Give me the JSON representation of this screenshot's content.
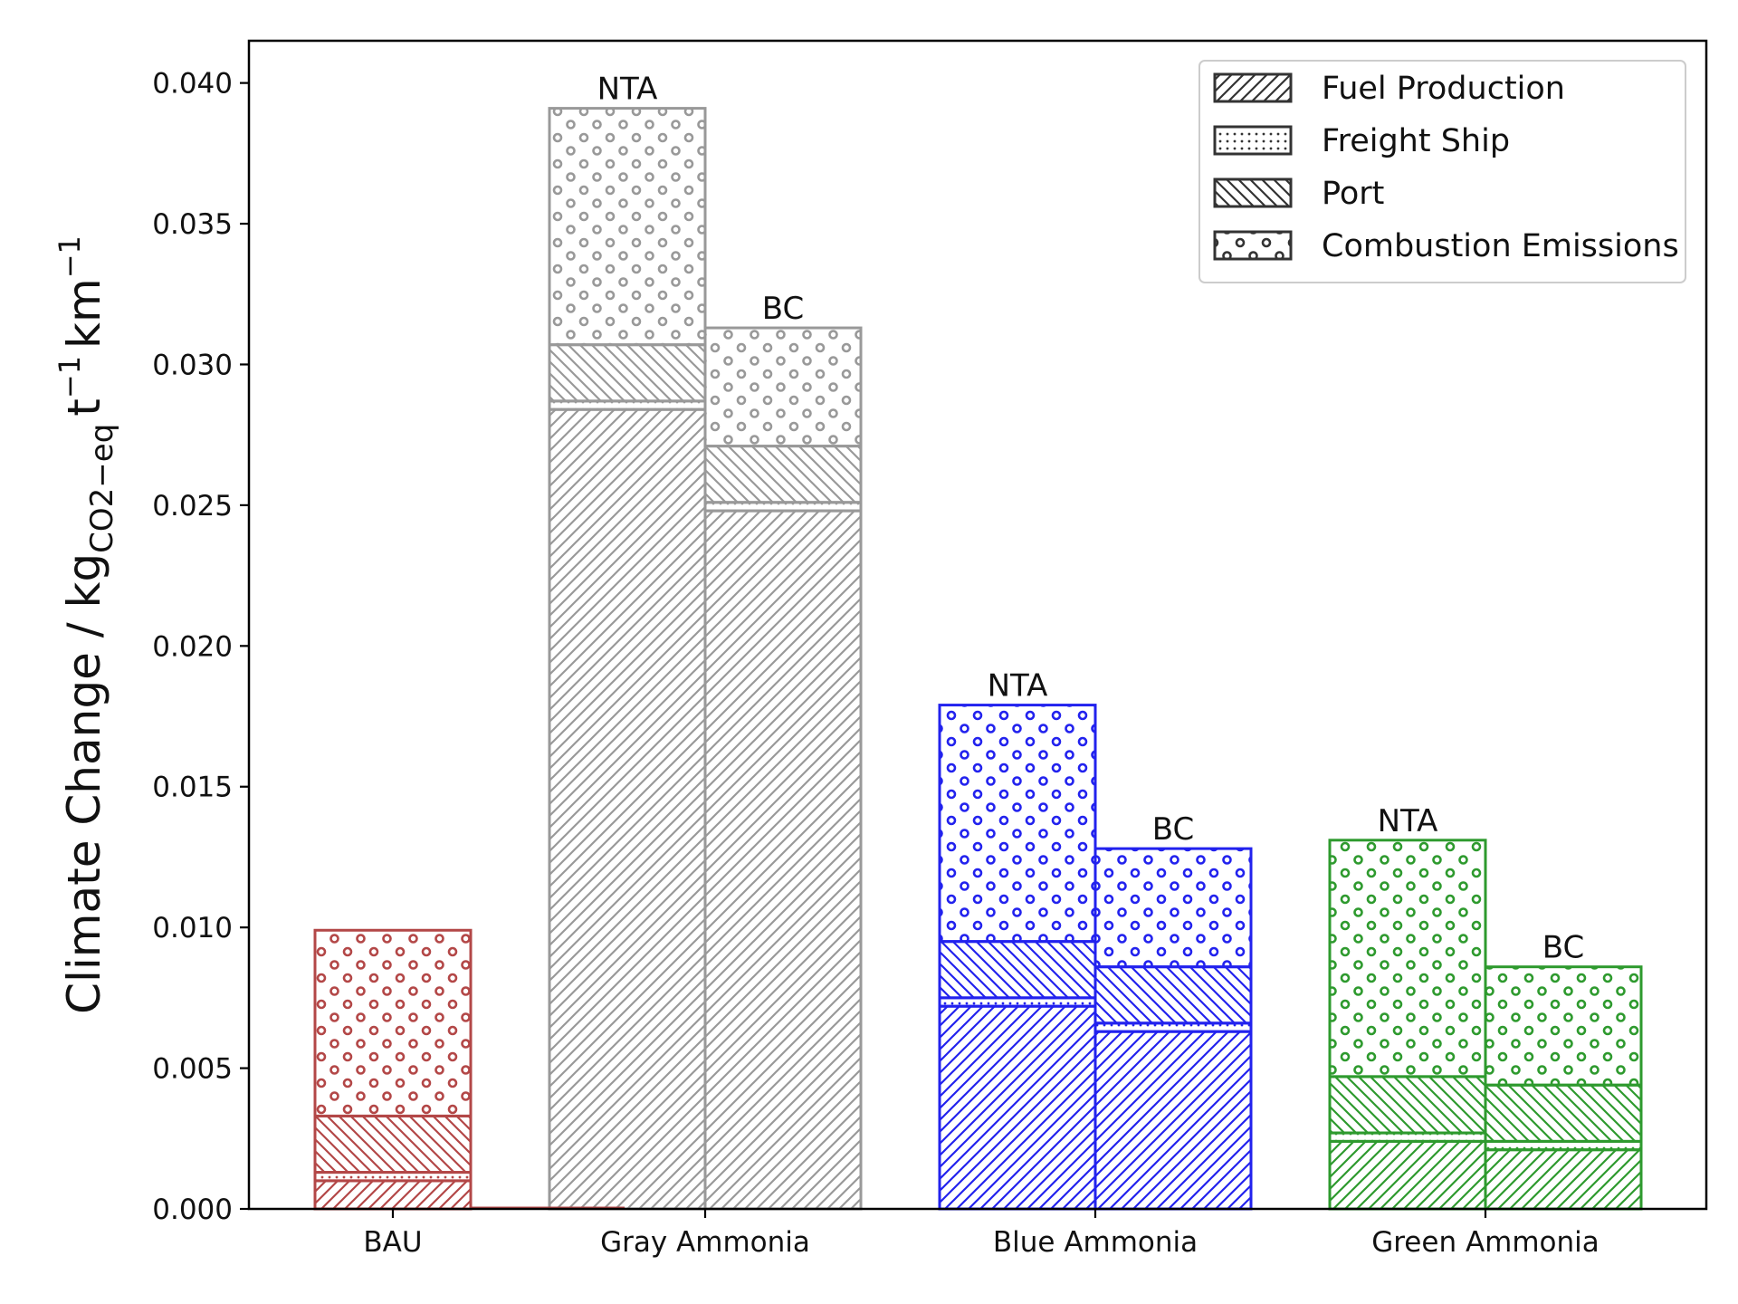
{
  "chart_data": {
    "type": "bar",
    "stacked": true,
    "title": "",
    "xlabel": "",
    "ylabel": "Climate Change / kg",
    "ylabel_sub": "CO2−eq",
    "ylabel_unit_t": "t",
    "ylabel_unit_km": "km",
    "ylabel_exp": "−1",
    "ylim": [
      0,
      0.0415
    ],
    "yticks": [
      "0.000",
      "0.005",
      "0.010",
      "0.015",
      "0.020",
      "0.025",
      "0.030",
      "0.035",
      "0.040"
    ],
    "categories": [
      "BAU",
      "Gray Ammonia",
      "Blue Ammonia",
      "Green Ammonia"
    ],
    "grid": false,
    "legend": {
      "placement": "top-right",
      "entries": [
        {
          "label": "Fuel Production",
          "pattern": "diag-dense"
        },
        {
          "label": "Freight Ship",
          "pattern": "dots"
        },
        {
          "label": "Port",
          "pattern": "diag-back"
        },
        {
          "label": "Combustion Emissions",
          "pattern": "circles"
        }
      ]
    },
    "bars": [
      {
        "category": "BAU",
        "label": "",
        "color": "#b34747",
        "stack": {
          "fuel_production": 0.001,
          "freight_ship": 0.0003,
          "port": 0.002,
          "combustion_emissions": 0.0066
        },
        "total": 0.0099
      },
      {
        "category": "Gray Ammonia",
        "label": "NTA",
        "color": "#999999",
        "stack": {
          "fuel_production": 0.0284,
          "freight_ship": 0.0003,
          "port": 0.002,
          "combustion_emissions": 0.0084
        },
        "total": 0.0391
      },
      {
        "category": "Gray Ammonia",
        "label": "BC",
        "color": "#999999",
        "stack": {
          "fuel_production": 0.0248,
          "freight_ship": 0.0003,
          "port": 0.002,
          "combustion_emissions": 0.0042
        },
        "total": 0.0313
      },
      {
        "category": "Blue Ammonia",
        "label": "NTA",
        "color": "#2222ee",
        "stack": {
          "fuel_production": 0.0072,
          "freight_ship": 0.0003,
          "port": 0.002,
          "combustion_emissions": 0.0084
        },
        "total": 0.0179
      },
      {
        "category": "Blue Ammonia",
        "label": "BC",
        "color": "#2222ee",
        "stack": {
          "fuel_production": 0.0063,
          "freight_ship": 0.0003,
          "port": 0.002,
          "combustion_emissions": 0.0042
        },
        "total": 0.0128
      },
      {
        "category": "Green Ammonia",
        "label": "NTA",
        "color": "#2e9a2e",
        "stack": {
          "fuel_production": 0.0024,
          "freight_ship": 0.0003,
          "port": 0.002,
          "combustion_emissions": 0.0084
        },
        "total": 0.0131
      },
      {
        "category": "Green Ammonia",
        "label": "BC",
        "color": "#2e9a2e",
        "stack": {
          "fuel_production": 0.0021,
          "freight_ship": 0.0003,
          "port": 0.002,
          "combustion_emissions": 0.0042
        },
        "total": 0.0086
      }
    ]
  }
}
